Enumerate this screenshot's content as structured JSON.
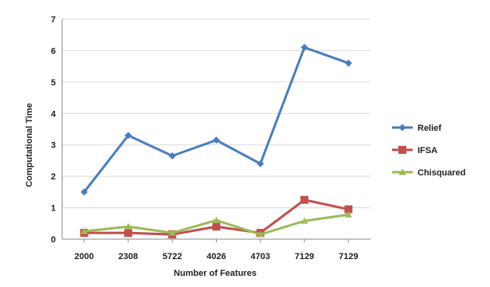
{
  "chart_data": {
    "type": "line",
    "title": "",
    "xlabel": "Number of Features",
    "ylabel": "Computational Time",
    "categories": [
      "2000",
      "2308",
      "5722",
      "4026",
      "4703",
      "7129",
      "7129"
    ],
    "ylim": [
      0,
      7
    ],
    "yticks": [
      "0",
      "1",
      "2",
      "3",
      "4",
      "5",
      "6",
      "7"
    ],
    "grid": true,
    "legend_position": "right",
    "series": [
      {
        "name": "Relief",
        "color": "#4a7ebb",
        "marker": "diamond",
        "values": [
          1.5,
          3.3,
          2.65,
          3.15,
          2.4,
          6.1,
          5.6
        ]
      },
      {
        "name": "IFSA",
        "color": "#c0504d",
        "marker": "square",
        "values": [
          0.2,
          0.2,
          0.15,
          0.4,
          0.2,
          1.25,
          0.95
        ]
      },
      {
        "name": "Chisquared",
        "color": "#9bbb59",
        "marker": "triangle",
        "values": [
          0.25,
          0.4,
          0.2,
          0.6,
          0.15,
          0.58,
          0.78
        ]
      }
    ]
  }
}
